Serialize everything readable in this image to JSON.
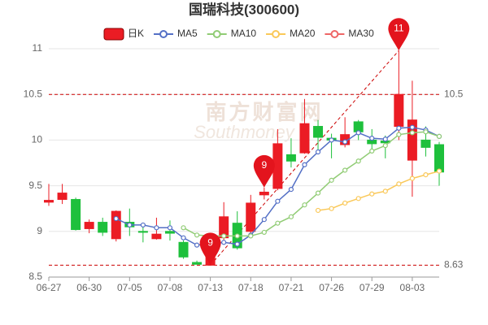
{
  "chart_data": {
    "type": "candlestick",
    "title": "国瑞科技(300600)",
    "categories": [
      "06-27",
      null,
      null,
      "06-30",
      null,
      null,
      "07-05",
      null,
      null,
      "07-08",
      null,
      null,
      "07-13",
      null,
      null,
      "07-18",
      null,
      null,
      "07-21",
      null,
      null,
      "07-26",
      null,
      null,
      "07-29",
      null,
      null,
      "08-03",
      null,
      null
    ],
    "series": [
      {
        "name": "日K",
        "type": "candlestick",
        "up_color": "#eb1c24",
        "down_color": "#1ec03c",
        "open": [
          9.32,
          9.35,
          9.35,
          9.03,
          9.1,
          8.92,
          9.1,
          9.0,
          8.92,
          9.0,
          8.88,
          8.66,
          8.63,
          8.93,
          9.09,
          9.0,
          9.4,
          9.47,
          9.84,
          9.86,
          10.15,
          10.02,
          9.95,
          10.2,
          10.0,
          9.99,
          10.15,
          9.78,
          10.0,
          9.95
        ],
        "close": [
          9.34,
          9.42,
          9.02,
          9.1,
          8.99,
          9.22,
          9.05,
          8.99,
          8.97,
          8.98,
          8.72,
          8.64,
          8.75,
          9.16,
          8.82,
          9.31,
          9.43,
          9.96,
          9.77,
          10.18,
          10.03,
          10.0,
          10.06,
          10.09,
          9.96,
          9.97,
          10.5,
          10.22,
          9.92,
          9.65
        ],
        "high": [
          9.52,
          9.52,
          9.37,
          9.13,
          9.15,
          9.23,
          9.25,
          9.08,
          9.15,
          9.12,
          8.9,
          8.68,
          8.85,
          9.32,
          9.22,
          9.4,
          9.48,
          10.12,
          10.02,
          10.45,
          10.22,
          10.07,
          10.25,
          10.22,
          10.12,
          10.05,
          10.98,
          10.65,
          10.15,
          9.98
        ],
        "low": [
          9.28,
          9.3,
          9.01,
          8.98,
          8.95,
          8.89,
          8.95,
          8.88,
          8.91,
          8.9,
          8.7,
          8.64,
          8.63,
          8.9,
          8.8,
          8.97,
          9.35,
          9.45,
          9.7,
          9.85,
          9.85,
          9.8,
          9.92,
          10.0,
          9.9,
          9.8,
          10.0,
          9.38,
          9.82,
          9.5
        ]
      },
      {
        "name": "MA5",
        "type": "line",
        "color": "#5470c6",
        "values": [
          null,
          null,
          null,
          null,
          null,
          9.14,
          9.07,
          9.07,
          9.04,
          9.04,
          8.93,
          8.85,
          8.86,
          8.88,
          8.86,
          8.96,
          9.13,
          9.33,
          9.46,
          9.73,
          9.87,
          10.0,
          9.98,
          10.08,
          10.02,
          10.01,
          10.13,
          10.14,
          10.11,
          10.04
        ]
      },
      {
        "name": "MA10",
        "type": "line",
        "color": "#91cc75",
        "values": [
          null,
          null,
          null,
          null,
          null,
          null,
          null,
          null,
          null,
          null,
          9.04,
          8.96,
          8.95,
          8.95,
          8.95,
          8.95,
          8.99,
          9.09,
          9.16,
          9.29,
          9.42,
          9.56,
          9.67,
          9.77,
          9.88,
          9.94,
          10.06,
          10.08,
          10.09,
          10.04
        ]
      },
      {
        "name": "MA20",
        "type": "line",
        "color": "#fac858",
        "values": [
          null,
          null,
          null,
          null,
          null,
          null,
          null,
          null,
          null,
          null,
          null,
          null,
          null,
          null,
          null,
          null,
          null,
          null,
          null,
          null,
          9.23,
          9.25,
          9.31,
          9.36,
          9.41,
          9.44,
          9.52,
          9.58,
          9.62,
          9.66
        ]
      },
      {
        "name": "MA30",
        "type": "line",
        "color": "#ee6666",
        "values": [
          null,
          null,
          null,
          null,
          null,
          null,
          null,
          null,
          null,
          null,
          null,
          null,
          null,
          null,
          null,
          null,
          null,
          null,
          null,
          null,
          null,
          null,
          null,
          null,
          null,
          null,
          null,
          null,
          null,
          null
        ]
      }
    ],
    "ylim": [
      8.5,
      11
    ],
    "yticks": [
      8.5,
      9,
      9.5,
      10,
      10.5,
      11
    ],
    "grid": true,
    "mark_lines": {
      "color": "#cc0000",
      "values": [
        10.5,
        8.63
      ]
    },
    "pins": [
      {
        "value": 10.98,
        "label": "11"
      },
      {
        "value": 9.48,
        "label": "9"
      },
      {
        "value": 8.63,
        "label": "9"
      }
    ],
    "pin_color": "#e3141d",
    "trendline": true,
    "watermark": {
      "title": "南方财富网",
      "subtitle": "Southmoney"
    }
  }
}
